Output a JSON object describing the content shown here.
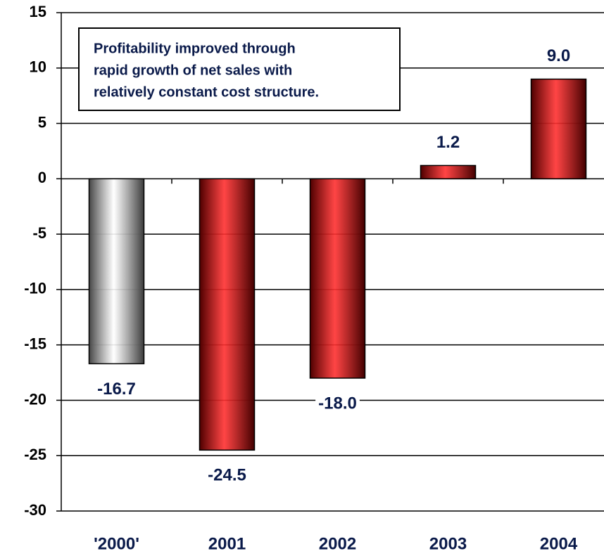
{
  "chart_data": {
    "type": "bar",
    "categories": [
      "'2000'",
      "2001",
      "2002",
      "2003",
      "2004"
    ],
    "values": [
      -16.7,
      -24.5,
      -18.0,
      1.2,
      9.0
    ],
    "value_labels": [
      "-16.7",
      "-24.5",
      "-18.0",
      "1.2",
      "9.0"
    ],
    "colors": [
      "#c8c8c8",
      "#e00000",
      "#e00000",
      "#e00000",
      "#e00000"
    ],
    "ylim": [
      -30,
      15
    ],
    "yticks": [
      -30,
      -25,
      -20,
      -15,
      -10,
      -5,
      0,
      5,
      10,
      15
    ],
    "grid": true,
    "annotation": [
      "Profitability improved through",
      "rapid growth of net sales with",
      "relatively constant cost structure."
    ]
  }
}
